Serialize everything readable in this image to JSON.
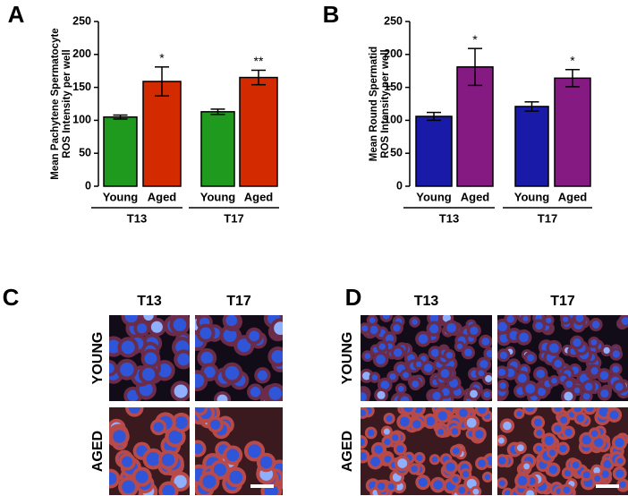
{
  "chart_data": [
    {
      "type": "bar",
      "panel_label": "A",
      "ylabel": [
        "Mean Pachytene Spermatocyte",
        "ROS Intensity per well"
      ],
      "categories": [
        "Young",
        "Aged",
        "Young",
        "Aged"
      ],
      "groups": [
        "T13",
        "T17"
      ],
      "values": [
        105,
        159,
        113,
        165
      ],
      "errors": [
        3,
        22,
        4,
        11
      ],
      "colors": [
        "#1f9a1f",
        "#d42a00",
        "#1f9a1f",
        "#d42a00"
      ],
      "annotations": [
        null,
        "*",
        null,
        "**"
      ],
      "ylim": [
        0,
        250
      ],
      "yticks": [
        0,
        50,
        100,
        150,
        200,
        250
      ]
    },
    {
      "type": "bar",
      "panel_label": "B",
      "ylabel": [
        "Mean Round Spermatid",
        "ROS Intensity per well"
      ],
      "categories": [
        "Young",
        "Aged",
        "Young",
        "Aged"
      ],
      "groups": [
        "T13",
        "T17"
      ],
      "values": [
        106,
        181,
        121,
        164
      ],
      "errors": [
        6,
        28,
        7,
        13
      ],
      "colors": [
        "#1a1aa8",
        "#851a82",
        "#1a1aa8",
        "#851a82"
      ],
      "annotations": [
        null,
        "*",
        null,
        "*"
      ],
      "ylim": [
        0,
        250
      ],
      "yticks": [
        0,
        50,
        100,
        150,
        200,
        250
      ]
    }
  ],
  "micrographs": [
    {
      "panel_label": "C",
      "columns": [
        "T13",
        "T17"
      ],
      "rows": [
        "YOUNG",
        "AGED"
      ]
    },
    {
      "panel_label": "D",
      "columns": [
        "T13",
        "T17"
      ],
      "rows": [
        "YOUNG",
        "AGED"
      ]
    }
  ]
}
